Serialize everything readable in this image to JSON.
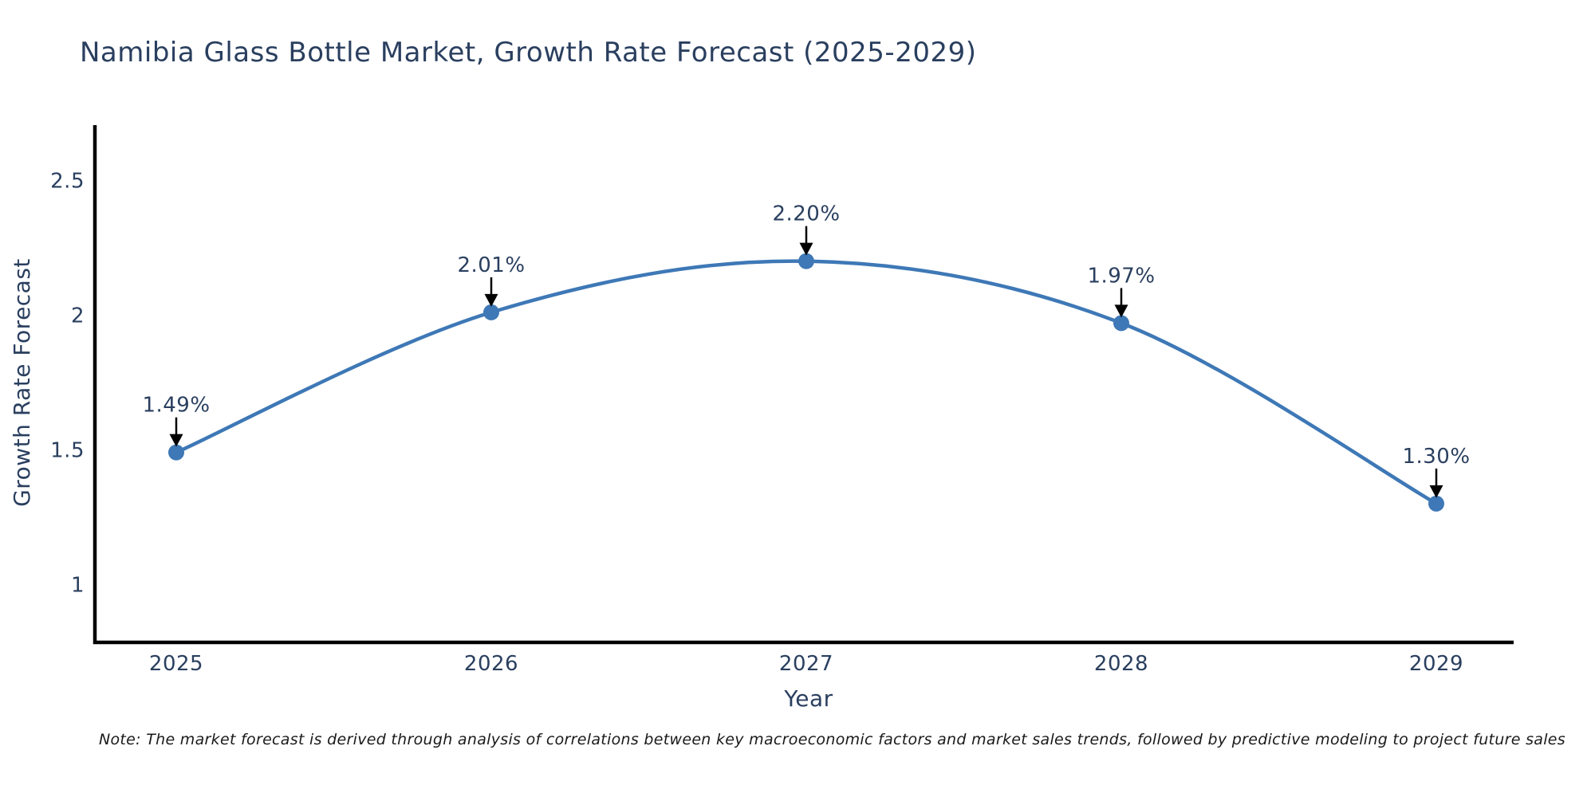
{
  "header": {
    "title": "Namibia Glass Bottle Market, Growth Rate Forecast (2025-2029)"
  },
  "note": {
    "text": "Note: The market forecast is derived through analysis of correlations between key macroeconomic factors and market sales trends, followed by predictive modeling to project future sales"
  },
  "chart_data": {
    "type": "line",
    "title": "Namibia Glass Bottle Market, Growth Rate Forecast (2025-2029)",
    "x": [
      "2025",
      "2026",
      "2027",
      "2028",
      "2029"
    ],
    "values": [
      1.49,
      2.01,
      2.2,
      1.97,
      1.3
    ],
    "point_labels": [
      "1.49%",
      "2.01%",
      "2.20%",
      "1.97%",
      "1.30%"
    ],
    "xlabel": "Year",
    "ylabel": "Growth Rate Forecast",
    "yticks": [
      1,
      1.5,
      2,
      2.5
    ],
    "ytick_labels": [
      "1",
      "1.5",
      "2",
      "2.5"
    ],
    "ylim": [
      0.785,
      2.699
    ],
    "line_shape": "spline",
    "grid": false,
    "legend": false,
    "colors": {
      "line": "#3E78B6",
      "marker": "#3E78B6",
      "axis": "#000000",
      "text": "#2a3f5f",
      "arrow": "#000000",
      "note": "#1a1a1a",
      "background": "#ffffff"
    }
  }
}
